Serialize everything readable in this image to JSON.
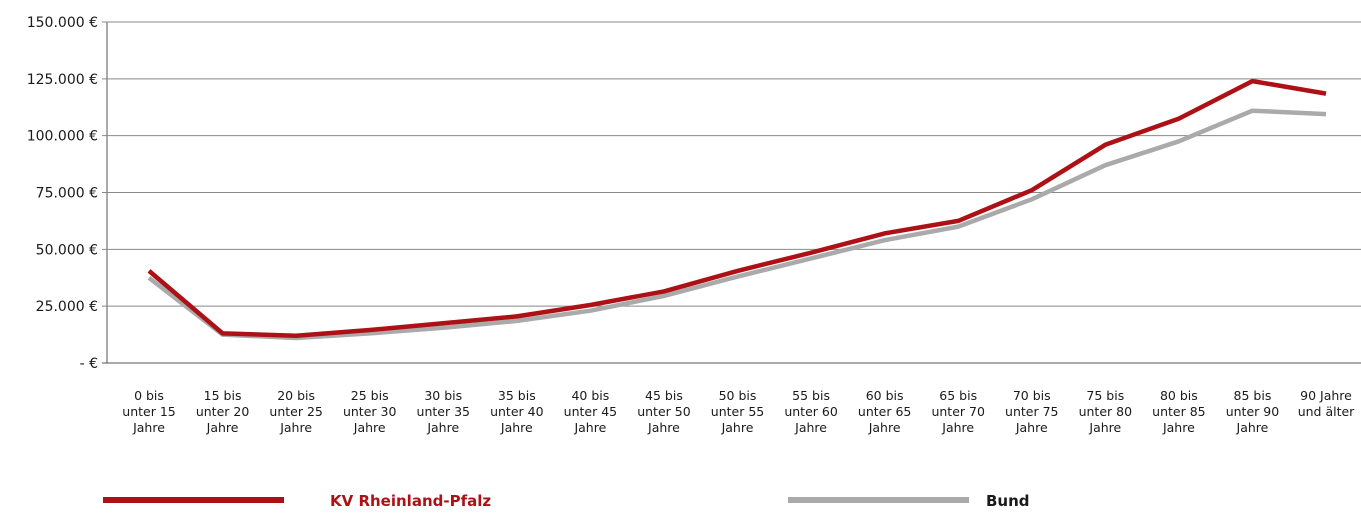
{
  "chart_data": {
    "type": "line",
    "categories": [
      [
        "0 bis",
        "unter 15",
        "Jahre"
      ],
      [
        "15 bis",
        "unter 20",
        "Jahre"
      ],
      [
        "20 bis",
        "unter 25",
        "Jahre"
      ],
      [
        "25 bis",
        "unter 30",
        "Jahre"
      ],
      [
        "30 bis",
        "unter 35",
        "Jahre"
      ],
      [
        "35 bis",
        "unter 40",
        "Jahre"
      ],
      [
        "40 bis",
        "unter 45",
        "Jahre"
      ],
      [
        "45 bis",
        "unter 50",
        "Jahre"
      ],
      [
        "50 bis",
        "unter 55",
        "Jahre"
      ],
      [
        "55 bis",
        "unter 60",
        "Jahre"
      ],
      [
        "60 bis",
        "unter 65",
        "Jahre"
      ],
      [
        "65 bis",
        "unter 70",
        "Jahre"
      ],
      [
        "70 bis",
        "unter 75",
        "Jahre"
      ],
      [
        "75 bis",
        "unter 80",
        "Jahre"
      ],
      [
        "80 bis",
        "unter 85",
        "Jahre"
      ],
      [
        "85 bis",
        "unter 90",
        "Jahre"
      ],
      [
        "90 Jahre",
        "und älter"
      ]
    ],
    "series": [
      {
        "name": "Bund",
        "color": "#aaaaaa",
        "values": [
          37500,
          12500,
          11000,
          13000,
          15500,
          18500,
          23000,
          29500,
          38000,
          46000,
          54000,
          60000,
          72000,
          87000,
          97500,
          111000,
          109500
        ]
      },
      {
        "name": "KV Rheinland-Pfalz",
        "color": "#ad1116",
        "values": [
          40500,
          13000,
          12000,
          14500,
          17500,
          20500,
          25500,
          31500,
          40500,
          48500,
          57000,
          62500,
          76000,
          96000,
          107500,
          124000,
          118500
        ]
      }
    ],
    "yticks": [
      {
        "value": 0,
        "label": "- €"
      },
      {
        "value": 25000,
        "label": "25.000 €"
      },
      {
        "value": 50000,
        "label": "50.000 €"
      },
      {
        "value": 75000,
        "label": "75.000 €"
      },
      {
        "value": 100000,
        "label": "100.000 €"
      },
      {
        "value": 125000,
        "label": "125.000 €"
      },
      {
        "value": 150000,
        "label": "150.000 €"
      }
    ],
    "ylim": [
      0,
      150000
    ],
    "grid": true,
    "legend_position": "bottom",
    "legend": [
      {
        "label": "KV Rheinland-Pfalz",
        "color": "#ad1116",
        "bold": true
      },
      {
        "label": "Bund",
        "color": "#aaaaaa",
        "bold": true
      }
    ],
    "title": "",
    "xlabel": "",
    "ylabel": ""
  }
}
